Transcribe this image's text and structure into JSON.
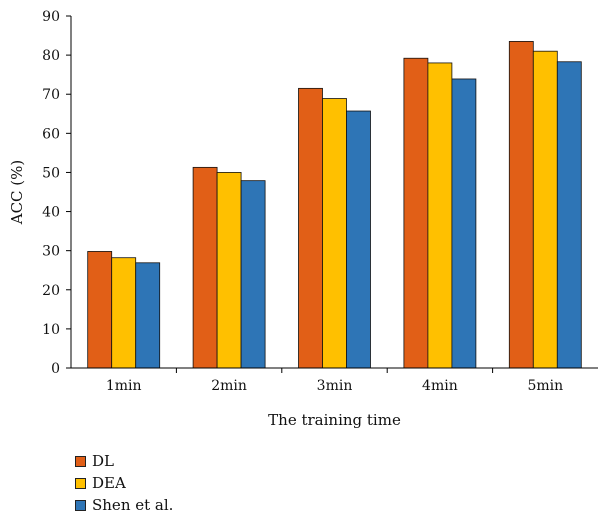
{
  "chart_data": {
    "type": "bar",
    "categories": [
      "1min",
      "2min",
      "3min",
      "4min",
      "5min"
    ],
    "series": [
      {
        "name": "DL",
        "color": "#E15F17",
        "values": [
          29.8,
          51.3,
          71.5,
          79.2,
          83.5
        ]
      },
      {
        "name": "DEA",
        "color": "#FFC000",
        "values": [
          28.2,
          50.0,
          68.9,
          78.0,
          81.0
        ]
      },
      {
        "name": "Shen et al.",
        "color": "#2E75B6",
        "values": [
          26.9,
          47.9,
          65.7,
          73.9,
          78.3
        ]
      }
    ],
    "xlabel": "The training time",
    "ylabel": "ACC (%)",
    "ylim": [
      0,
      90
    ],
    "yticks": [
      0,
      10,
      20,
      30,
      40,
      50,
      60,
      70,
      80,
      90
    ],
    "grid": false,
    "legend_position": "bottom-left"
  }
}
